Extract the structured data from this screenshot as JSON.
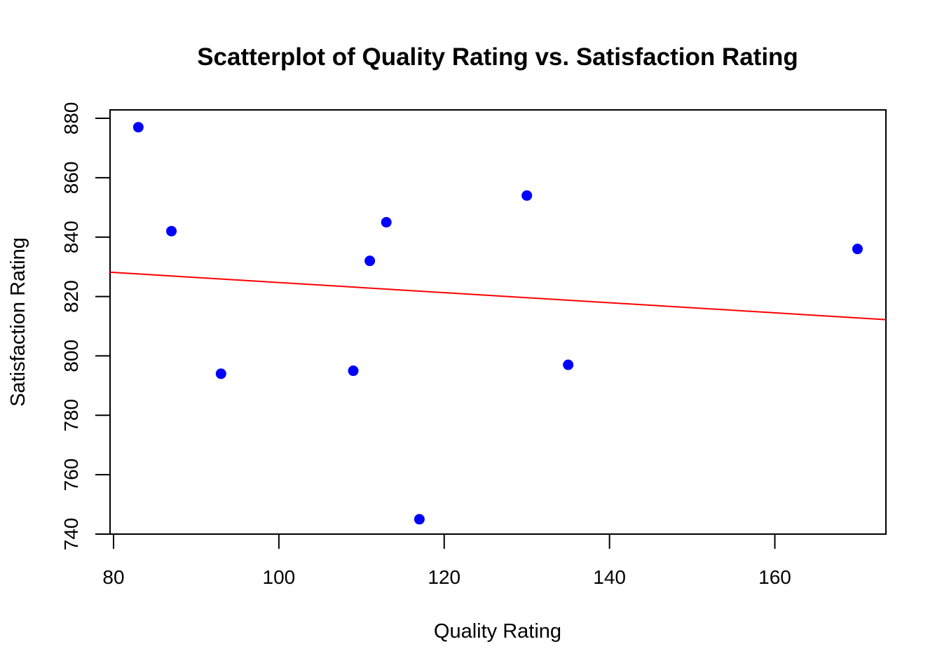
{
  "chart_data": {
    "type": "scatter",
    "title": "Scatterplot of Quality Rating vs. Satisfaction Rating",
    "xlabel": "Quality Rating",
    "ylabel": "Satisfaction Rating",
    "xlim": [
      79.5,
      173.5
    ],
    "ylim": [
      740,
      882
    ],
    "x_ticks": [
      80,
      100,
      120,
      140,
      160
    ],
    "y_ticks": [
      740,
      760,
      780,
      800,
      820,
      840,
      860,
      880
    ],
    "points": [
      {
        "x": 83,
        "y": 877
      },
      {
        "x": 87,
        "y": 842
      },
      {
        "x": 93,
        "y": 794
      },
      {
        "x": 109,
        "y": 795
      },
      {
        "x": 111,
        "y": 832
      },
      {
        "x": 113,
        "y": 845
      },
      {
        "x": 117,
        "y": 745
      },
      {
        "x": 130,
        "y": 854
      },
      {
        "x": 135,
        "y": 797
      },
      {
        "x": 170,
        "y": 836
      }
    ],
    "regression_line": {
      "intercept": 841.7,
      "slope": -0.17
    },
    "point_color": "#0000ff",
    "line_color": "#ff0000",
    "grid": false,
    "legend": "none"
  }
}
